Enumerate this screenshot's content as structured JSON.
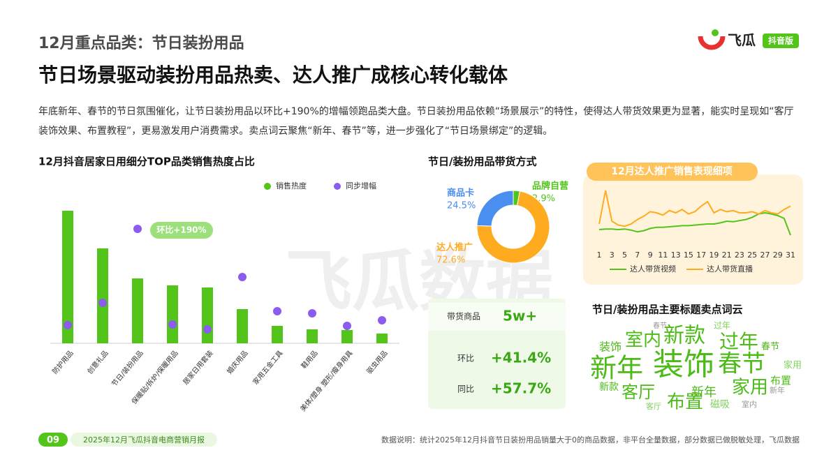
{
  "header": {
    "section": "12月重点品类：节日装扮用品",
    "title": "节日场景驱动装扮用品热卖、达人推广成核心转化载体",
    "logo": "飞瓜",
    "badge": "抖音版",
    "watermark": "飞瓜数据"
  },
  "intro": "年底新年、春节的节日氛围催化，让节日装扮用品以环比+190%的增幅领跑品类大盘。节日装扮用品依赖“场景展示”的特性，使得达人带货效果更为显著，能实时呈现如“客厅装饰效果、布置教程”，更易激发用户消费需求。卖点词云聚焦“新年、春节”等，进一步强化了“节日场景绑定”的逻辑。",
  "chart_data": [
    {
      "type": "bar",
      "title": "12月抖音居家日用细分TOP品类销售热度占比",
      "categories": [
        "防护用品",
        "创意礼品",
        "节日/装扮用品",
        "保暖贴/拆炉/保暖用品",
        "居家日用套装",
        "婚庆用品",
        "家用五金工具",
        "鞋用品",
        "美体/塑身 塑形/瘦身用具",
        "驱虫用品"
      ],
      "series": [
        {
          "name": "销售热度",
          "type": "bar",
          "color": "#52c41a",
          "values": [
            190,
            136,
            93,
            83,
            80,
            49,
            25,
            20,
            19,
            14
          ]
        },
        {
          "name": "同步增幅",
          "type": "scatter",
          "color": "#8c5cf0",
          "values": [
            26,
            58,
            164,
            27,
            20,
            95,
            46,
            43,
            25,
            33
          ]
        }
      ],
      "ylim": [
        0,
        200
      ],
      "annotation": "环比+190%"
    },
    {
      "type": "pie",
      "title": "节日/装扮用品带货方式",
      "categories": [
        "品牌自营",
        "达人推广",
        "商品卡"
      ],
      "values": [
        2.9,
        72.6,
        24.5
      ],
      "value_labels": [
        "2.9%",
        "72.6%",
        "24.5%"
      ],
      "colors": [
        "#52c41a",
        "#ffab1f",
        "#4a8ff0"
      ]
    },
    {
      "type": "line",
      "title": "12月达人推广销售表现细项",
      "x": [
        1,
        2,
        3,
        4,
        5,
        6,
        7,
        8,
        9,
        10,
        11,
        12,
        13,
        14,
        15,
        16,
        17,
        18,
        19,
        20,
        21,
        22,
        23,
        24,
        25,
        26,
        27,
        28,
        29,
        30,
        31
      ],
      "xlim": [
        1,
        31
      ],
      "xticks": [
        1,
        3,
        5,
        7,
        9,
        11,
        13,
        15,
        17,
        19,
        21,
        23,
        25,
        27,
        29,
        31
      ],
      "ylim": [
        0,
        100
      ],
      "series": [
        {
          "name": "达人带货视频",
          "color": "#52c41a",
          "values": [
            20,
            21,
            21,
            20,
            21,
            19,
            16,
            18,
            22,
            24,
            24,
            25,
            26,
            27,
            27,
            28,
            29,
            30,
            30,
            32,
            35,
            34,
            36,
            38,
            42,
            48,
            50,
            48,
            45,
            40,
            10
          ]
        },
        {
          "name": "达人带货直播",
          "color": "#ffab1f",
          "values": [
            30,
            90,
            35,
            28,
            26,
            30,
            38,
            44,
            52,
            50,
            46,
            54,
            50,
            56,
            48,
            52,
            62,
            70,
            50,
            56,
            52,
            54,
            50,
            50,
            52,
            48,
            54,
            50,
            48,
            56,
            62
          ]
        }
      ]
    }
  ],
  "stats": {
    "rows": [
      {
        "label": "带货商品",
        "value": "5w+"
      },
      {
        "label": "环比",
        "value": "+41.4%"
      },
      {
        "label": "同比",
        "value": "+57.7%"
      }
    ]
  },
  "wordcloud": {
    "title": "节日/装扮用品主要标题卖点词云",
    "words": [
      "装饰",
      "新年",
      "春节",
      "新款",
      "室内",
      "过年",
      "家用",
      "客厅",
      "布置",
      "新年",
      "装饰",
      "春节",
      "家用",
      "布置",
      "磁吸",
      "过年",
      "室内",
      "新款",
      "客厅",
      "春节",
      "新年"
    ]
  },
  "footer": {
    "page": "09",
    "report": "2025年12月飞瓜抖音电商营销月报",
    "note": "数据说明：统计2025年12月抖音节日装扮用品销量大于0的商品数据，非平台全量数据，部分数据已做脱敏处理，飞瓜数据"
  }
}
